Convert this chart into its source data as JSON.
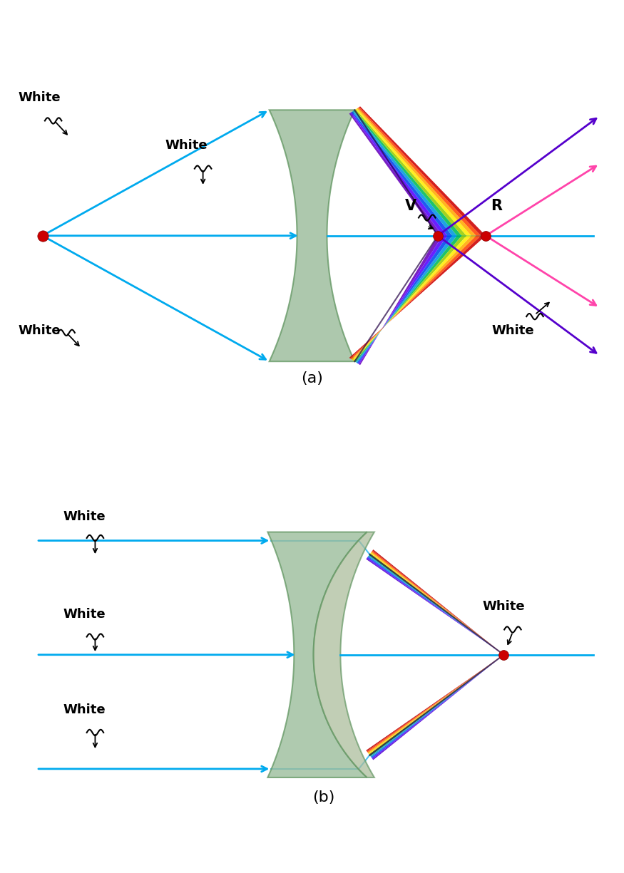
{
  "fig_width": 8.75,
  "fig_height": 12.25,
  "bg_color": "#ffffff",
  "cyan": "#00aaee",
  "violet": "#5500cc",
  "blue_violet": "#4400ff",
  "pink": "#ff44bb",
  "dark_red": "#cc0000",
  "lens_color": "#99bb99",
  "lens_edge": "#669966",
  "label_a": "(a)",
  "label_b": "(b)",
  "white_label": "White",
  "V_label": "V",
  "R_label": "R",
  "spectrum_colors": [
    "#6600bb",
    "#5500ff",
    "#0044ee",
    "#0099dd",
    "#00bb55",
    "#99cc00",
    "#ffee00",
    "#ffaa00",
    "#ff4400",
    "#cc0000"
  ],
  "spectrum_colors_b": [
    "#5500cc",
    "#4400ff",
    "#0055ee",
    "#0099cc",
    "#00aa44",
    "#88bb00",
    "#ffdd00",
    "#ff9900",
    "#ff3300",
    "#bb0000"
  ]
}
